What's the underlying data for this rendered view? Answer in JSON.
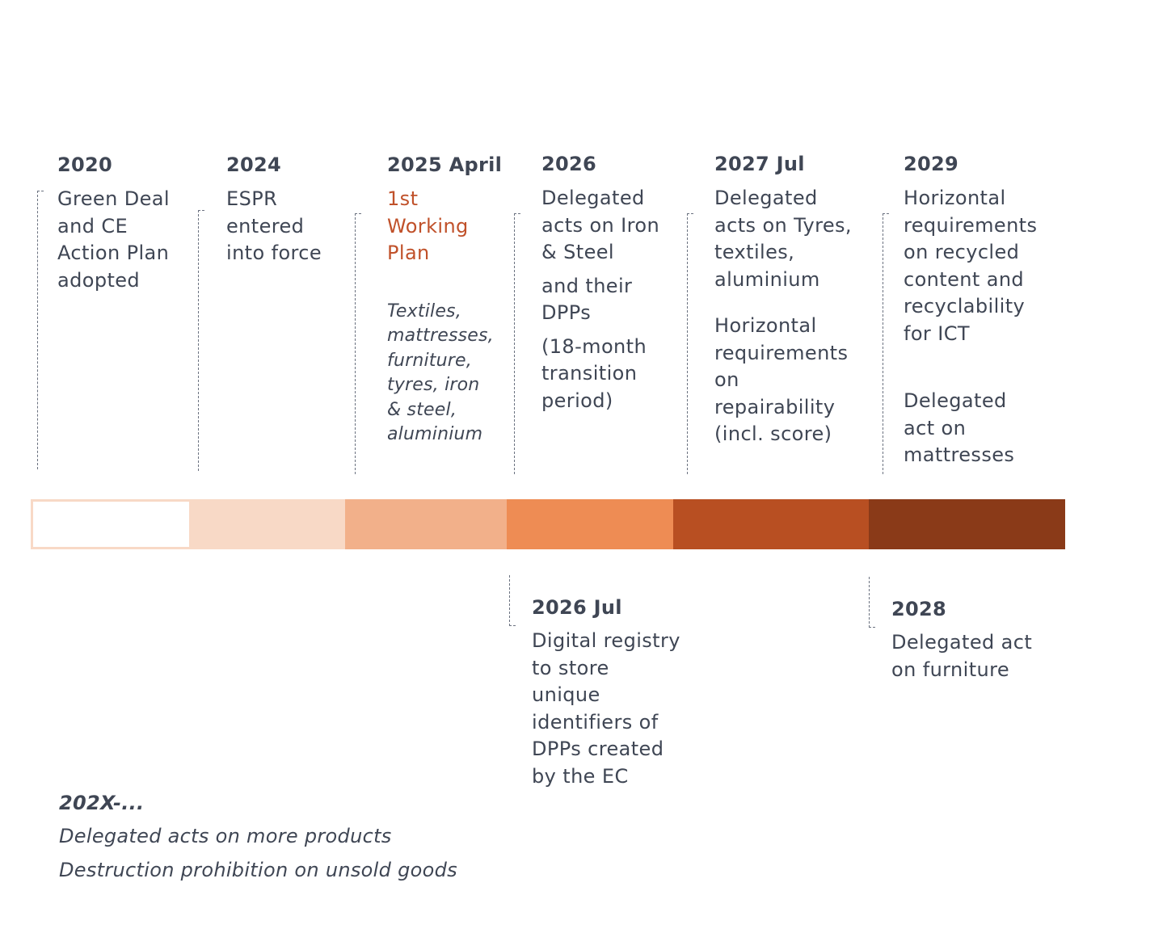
{
  "milestones": [
    {
      "year": "2020",
      "text": [
        "Green Deal",
        "and CE",
        "Action Plan",
        "adopted"
      ]
    },
    {
      "year": "2024",
      "text": [
        "ESPR",
        "entered",
        "into force"
      ]
    },
    {
      "year": "2025 April",
      "text": [
        "1st",
        "Working",
        "Plan"
      ],
      "note": [
        "Textiles,",
        "mattresses,",
        "furniture,",
        "tyres,  iron",
        "& steel,",
        "aluminium"
      ]
    },
    {
      "year": "2026",
      "text": [
        "Delegated",
        "acts on Iron",
        "& Steel"
      ],
      "text2": [
        "and their",
        "DPPs"
      ],
      "text3": [
        "(18-month",
        "transition",
        "period)"
      ]
    },
    {
      "year": "2027 Jul",
      "text": [
        "Delegated",
        "acts on Tyres,",
        "textiles,",
        "aluminium"
      ],
      "text2": [
        "Horizontal",
        "requirements",
        "on",
        "repairability",
        "(incl. score)"
      ]
    },
    {
      "year": "2029",
      "text": [
        "Horizontal",
        "requirements",
        "on recycled",
        "content and",
        "recyclability",
        "for ICT"
      ],
      "text2": [
        "Delegated",
        "act on",
        "mattresses"
      ]
    }
  ],
  "lower_milestones": [
    {
      "year": "2026 Jul",
      "text": [
        "Digital registry",
        "to store",
        "unique",
        "identifiers of",
        "DPPs created",
        "by the EC"
      ]
    },
    {
      "year": "2028",
      "text": [
        "Delegated act",
        "on furniture"
      ]
    }
  ],
  "footer": {
    "year": "202X-...",
    "line1": "Delegated acts on more products",
    "line2": "Destruction prohibition on unsold goods"
  },
  "colors": {
    "text": "#3f4654",
    "accent": "#c0512a",
    "bar": [
      "#ffffff",
      "#f8d9c6",
      "#f2b08a",
      "#ee8c54",
      "#b84f22",
      "#8a3a18"
    ],
    "bar_outline": "#f8d9c6"
  }
}
